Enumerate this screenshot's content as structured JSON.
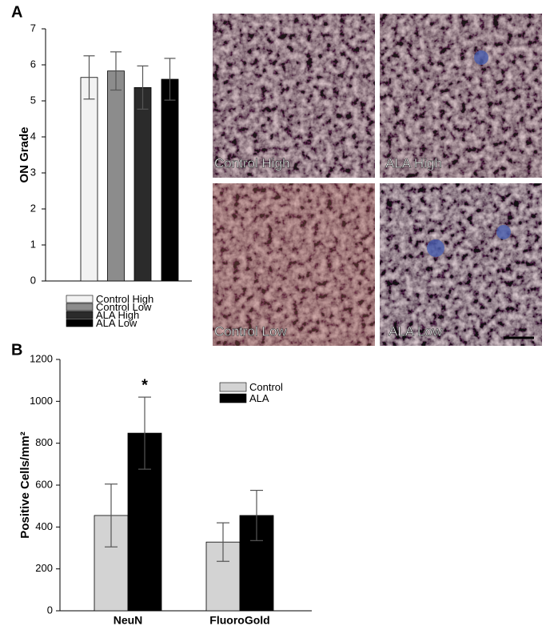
{
  "chart_data": [
    {
      "type": "bar",
      "panel": "A",
      "ylabel": "ON Grade",
      "ylim": [
        0,
        7
      ],
      "yticks": [
        0,
        1,
        2,
        3,
        4,
        5,
        6,
        7
      ],
      "legend": "below",
      "series": [
        {
          "name": "Control High",
          "color": "#f2f2f2",
          "values": [
            5.65
          ],
          "errors": [
            0.6
          ]
        },
        {
          "name": "Control Low",
          "color": "#8c8c8c",
          "values": [
            5.83
          ],
          "errors": [
            0.53
          ]
        },
        {
          "name": "ALA High",
          "color": "#2b2b2b",
          "values": [
            5.37
          ],
          "errors": [
            0.6
          ]
        },
        {
          "name": "ALA Low",
          "color": "#000000",
          "values": [
            5.6
          ],
          "errors": [
            0.58
          ]
        }
      ]
    },
    {
      "type": "bar",
      "panel": "B",
      "ylabel": "Positive Cells/mm²",
      "ylim": [
        0,
        1200
      ],
      "yticks": [
        0,
        200,
        400,
        600,
        800,
        1000,
        1200
      ],
      "legend": "upper right",
      "categories": [
        "NeuN",
        "FluoroGold"
      ],
      "annotation": "*",
      "series": [
        {
          "name": "Control",
          "color": "#d3d3d3",
          "values": [
            455,
            328
          ],
          "errors": [
            150,
            92
          ]
        },
        {
          "name": "ALA",
          "color": "#000000",
          "values": [
            848,
            455
          ],
          "errors": [
            172,
            120
          ]
        }
      ]
    }
  ],
  "micrographs": {
    "labels": [
      "Control High",
      "ALA High",
      "Control Low",
      "ALA Low"
    ]
  }
}
